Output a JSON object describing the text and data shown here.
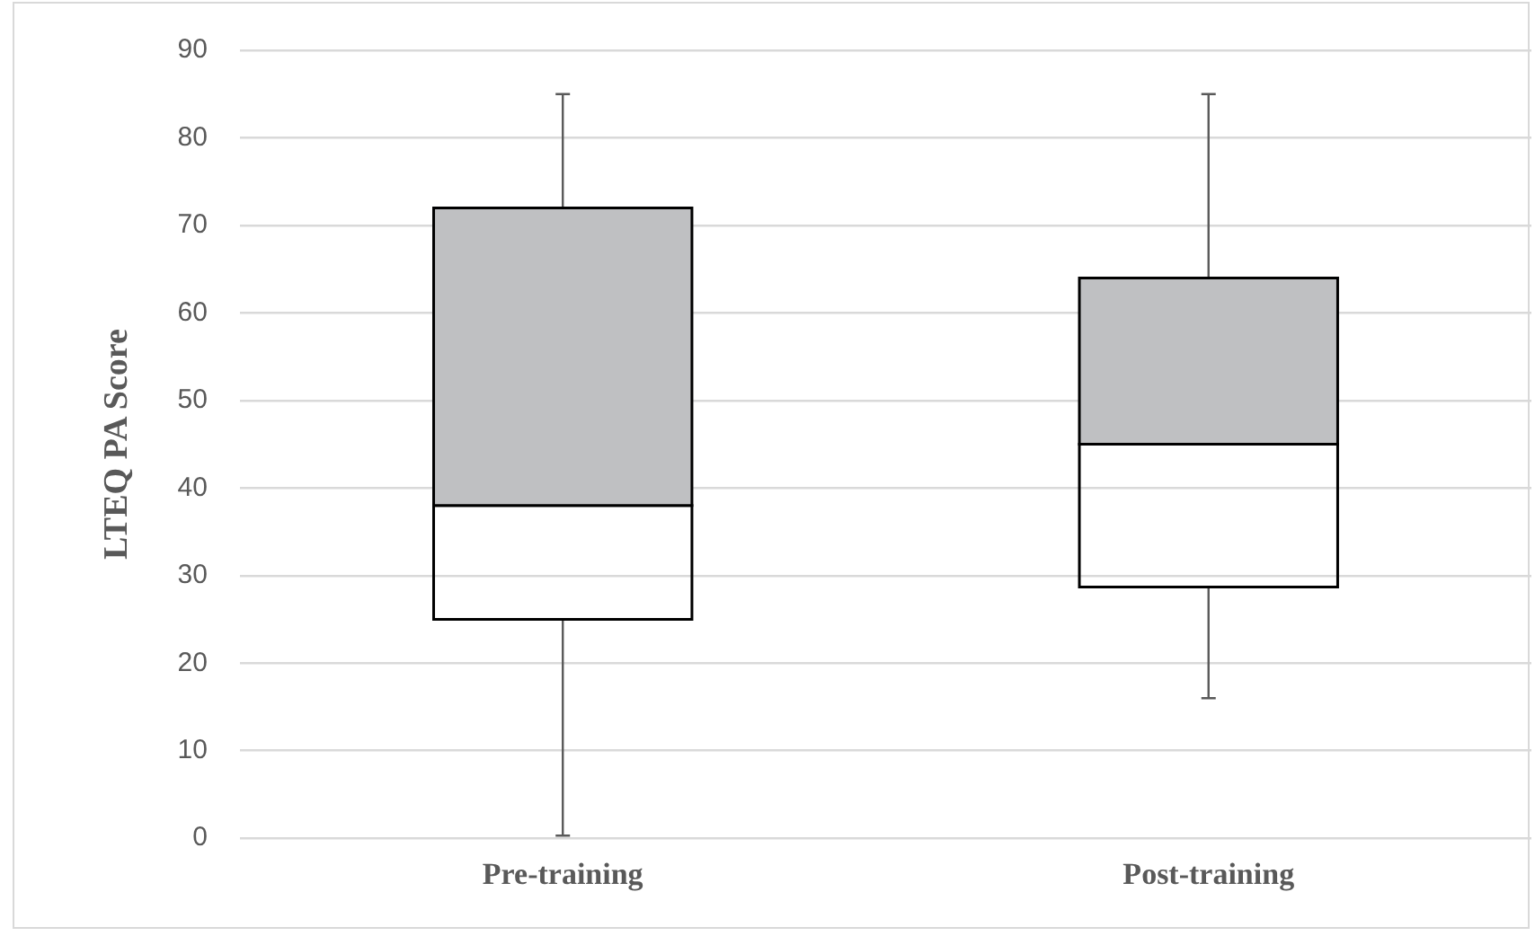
{
  "chart_data": {
    "type": "box",
    "ylabel": "LTEQ PA Score",
    "categories": [
      "Pre-training",
      "Post-training"
    ],
    "color": "#bfc0c2",
    "boxes": [
      {
        "low": 0.3,
        "q1": 25,
        "median": 38,
        "q3": 72,
        "high": 85
      },
      {
        "low": 16,
        "q1": 28.7,
        "median": 45,
        "q3": 64,
        "high": 85
      }
    ],
    "ylim": [
      0,
      90
    ],
    "yticks": [
      0,
      10,
      20,
      30,
      40,
      50,
      60,
      70,
      80,
      90
    ],
    "grid": "y",
    "legend": false
  }
}
